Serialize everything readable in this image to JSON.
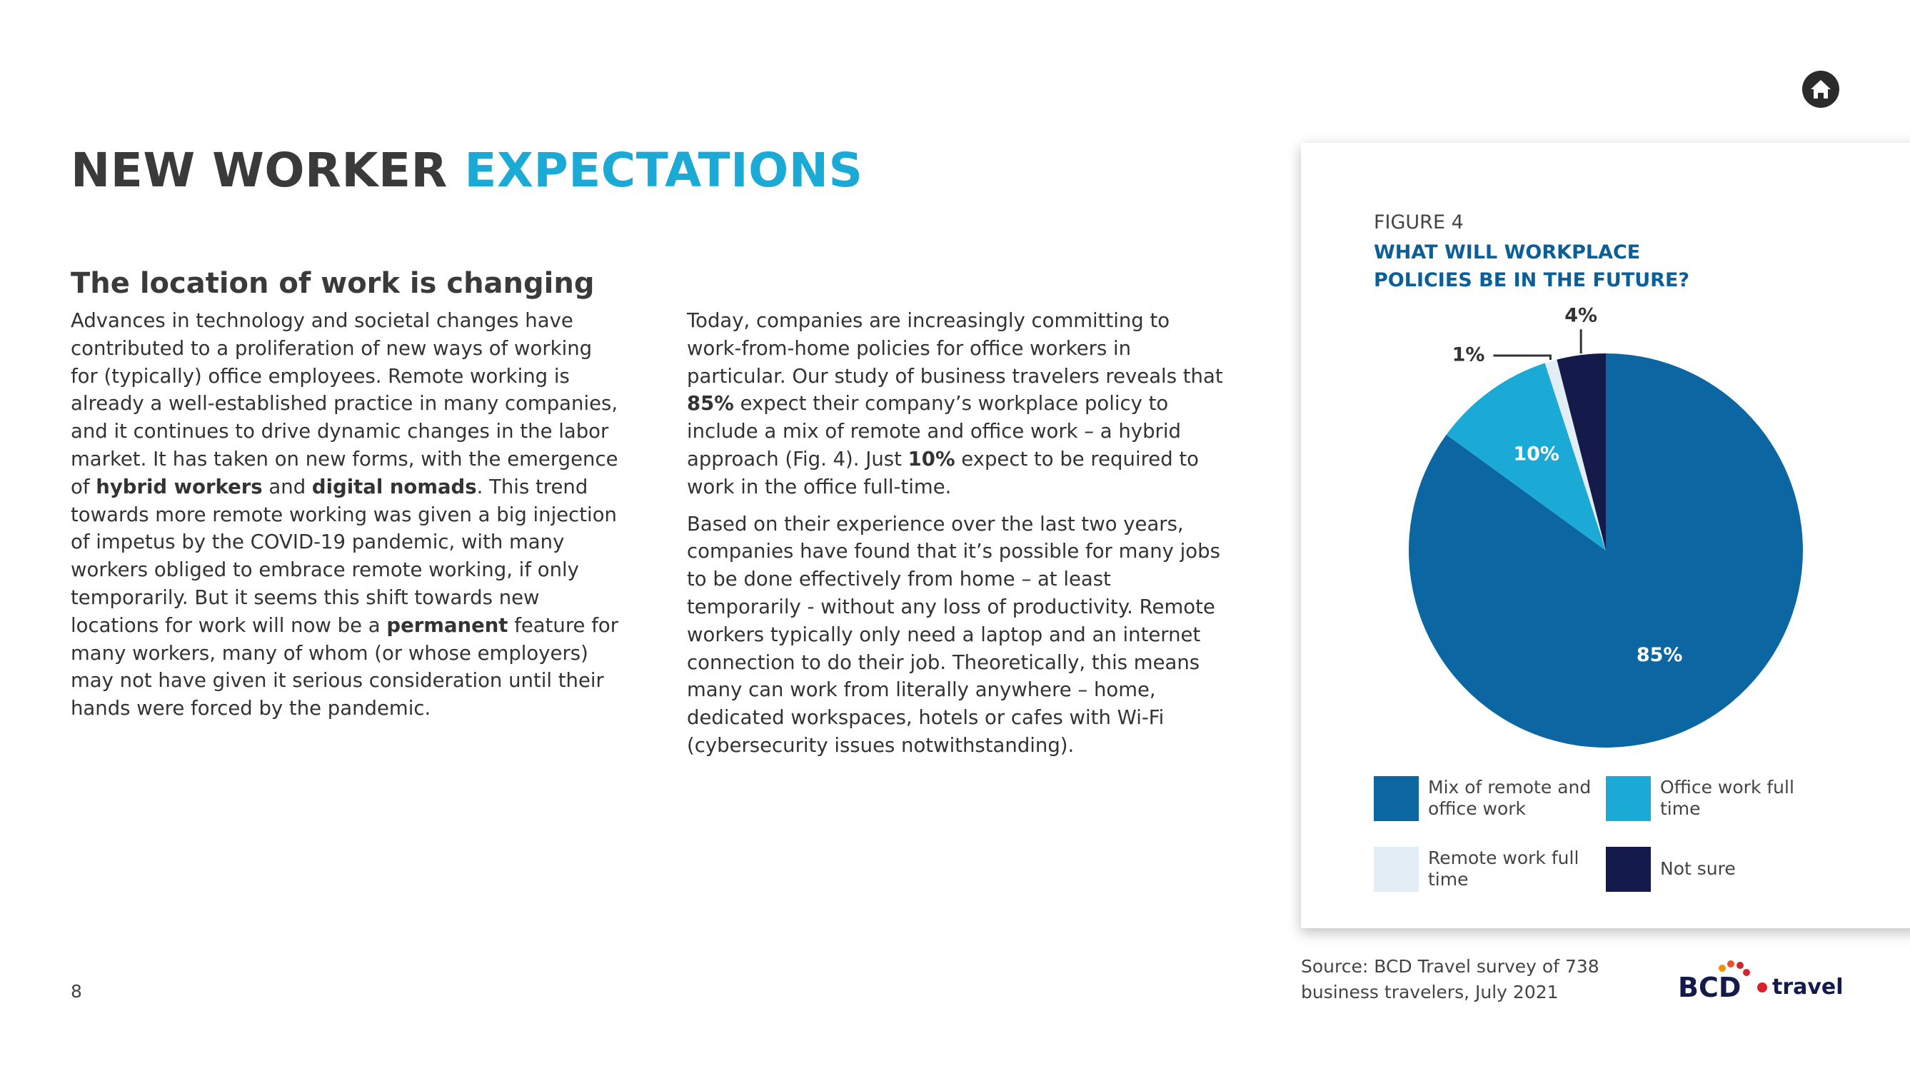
{
  "header": {
    "title_dark": "NEW WORKER",
    "title_accent": "EXPECTATIONS"
  },
  "subtitle": "The location of work is changing",
  "left_column": {
    "paragraphs": [
      [
        {
          "text": "Advances in technology and societal changes have contributed to a proliferation of new ways of working for (typically) office employees. Remote working is already a well-established practice in many companies, and it continues to drive dynamic changes in the labor market. It has taken on new forms, with the emergence of "
        },
        {
          "text": "hybrid workers",
          "bold": true
        },
        {
          "text": " and "
        },
        {
          "text": "digital nomads",
          "bold": true
        },
        {
          "text": ". This trend towards more remote working was given a big injection of impetus by the COVID-19 pandemic, with many workers obliged to embrace remote working, if only temporarily. But it seems this shift towards new locations for work will now be a "
        },
        {
          "text": "permanent",
          "bold": true
        },
        {
          "text": " feature for many workers, many of whom (or whose employers) may not have given it serious consideration until their hands were forced by the pandemic."
        }
      ]
    ]
  },
  "right_column": {
    "paragraphs": [
      [
        {
          "text": "Today, companies are increasingly committing to work-from-home policies for office workers in particular. Our study of business travelers reveals that "
        },
        {
          "text": "85%",
          "bold": true
        },
        {
          "text": " expect their company’s workplace policy to include a mix of remote and office work – a hybrid approach (Fig. 4). Just "
        },
        {
          "text": "10%",
          "bold": true
        },
        {
          "text": " expect to be required to work in the office full-time."
        }
      ],
      [
        {
          "text": "Based on their experience over the last two years, companies have found that it’s possible for many jobs to be done effectively from home – at least temporarily - without any loss of productivity. Remote workers typically only need a laptop and an internet connection to do their job. Theoretically, this means many can work from literally anywhere – home, dedicated workspaces, hotels or cafes with Wi-Fi (cybersecurity issues notwithstanding)."
        }
      ]
    ]
  },
  "chart_data": {
    "type": "pie",
    "figure_label": "FIGURE 4",
    "title": "WHAT WILL WORKPLACE POLICIES BE IN THE FUTURE?",
    "categories": [
      "Mix of remote and office work",
      "Office work full time",
      "Remote work full time",
      "Not sure"
    ],
    "values": [
      85,
      10,
      1,
      4
    ],
    "value_labels": [
      "85%",
      "10%",
      "1%",
      "4%"
    ],
    "colors": [
      "#0b66a2",
      "#1aaad5",
      "#e2edf5",
      "#141a4a"
    ]
  },
  "source": "Source: BCD Travel survey of 738 business travelers, July 2021",
  "page_number": "8",
  "logo": {
    "brand": "BCD",
    "suffix": "travel"
  }
}
